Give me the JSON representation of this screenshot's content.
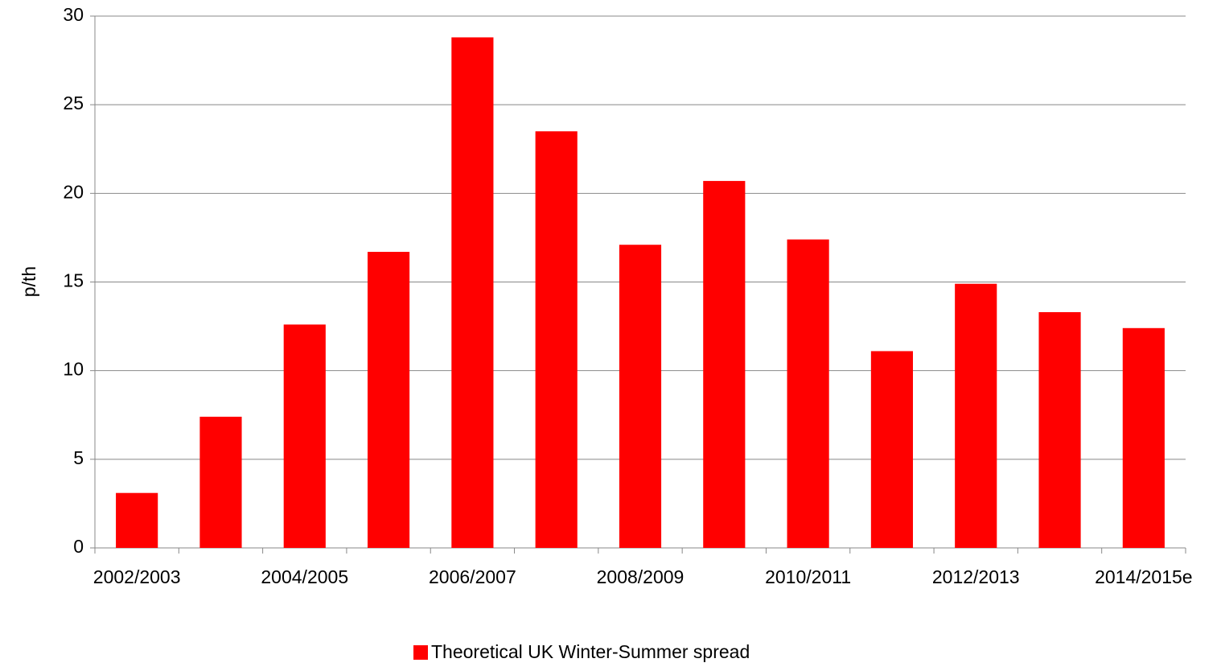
{
  "chart_data": {
    "type": "bar",
    "y_label": "p/th",
    "categories": [
      "2002/2003",
      null,
      "2004/2005",
      null,
      "2006/2007",
      null,
      "2008/2009",
      null,
      "2010/2011",
      null,
      "2012/2013",
      null,
      "2014/2015e"
    ],
    "series": [
      {
        "name": "Theoretical UK Winter-Summer spread",
        "color": "#ff0000",
        "values": [
          3.1,
          7.4,
          12.6,
          16.7,
          28.8,
          23.5,
          17.1,
          20.7,
          17.4,
          11.1,
          14.9,
          13.3,
          12.4
        ]
      }
    ],
    "ylim": [
      0,
      30
    ],
    "yticks": [
      0,
      5,
      10,
      15,
      20,
      25,
      30
    ],
    "grid": true,
    "legend": "bottom"
  }
}
